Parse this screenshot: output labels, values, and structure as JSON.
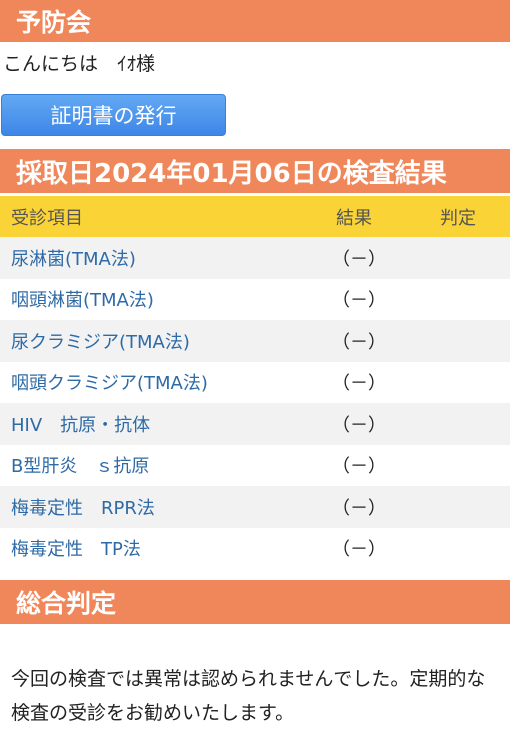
{
  "header": {
    "title": "予防会"
  },
  "greeting": "こんにちは　ｲｵ様",
  "certificate_button_label": "証明書の発行",
  "results": {
    "title": "採取日2024年01月06日の検査結果",
    "columns": {
      "item": "受診項目",
      "result": "結果",
      "judgement": "判定"
    },
    "rows": [
      {
        "item": "尿淋菌(TMA法)",
        "result": "（－）",
        "judgement": ""
      },
      {
        "item": "咽頭淋菌(TMA法)",
        "result": "（－）",
        "judgement": ""
      },
      {
        "item": "尿クラミジア(TMA法)",
        "result": "（－）",
        "judgement": ""
      },
      {
        "item": "咽頭クラミジア(TMA法)",
        "result": "（－）",
        "judgement": ""
      },
      {
        "item": "HIV　抗原・抗体",
        "result": "（－）",
        "judgement": ""
      },
      {
        "item": "B型肝炎　ｓ抗原",
        "result": "（－）",
        "judgement": ""
      },
      {
        "item": "梅毒定性　RPR法",
        "result": "（－）",
        "judgement": ""
      },
      {
        "item": "梅毒定性　TP法",
        "result": "（－）",
        "judgement": ""
      }
    ]
  },
  "overall": {
    "title": "総合判定",
    "text": "今回の検査では異常は認められませんでした。定期的な検査の受診をお勧めいたします。"
  },
  "colors": {
    "accent_orange": "#f0875a",
    "header_yellow": "#fad437",
    "button_blue": "#4a90e2",
    "link_blue": "#2d6aa6"
  }
}
